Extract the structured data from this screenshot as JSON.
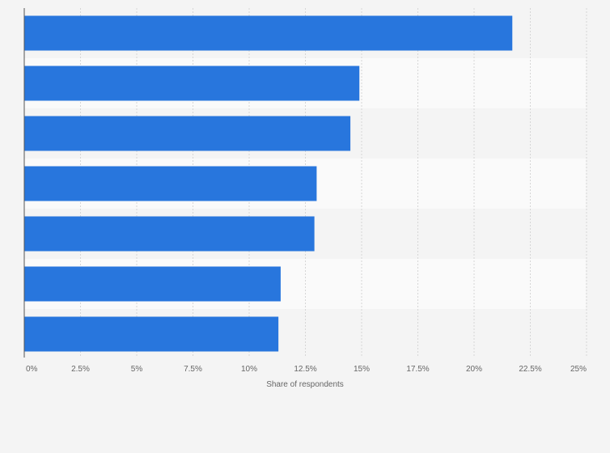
{
  "chart_data": {
    "type": "bar",
    "orientation": "horizontal",
    "categories": [
      "",
      "",
      "",
      "",
      "",
      "",
      ""
    ],
    "values": [
      21.7,
      14.9,
      14.5,
      13.0,
      12.9,
      11.4,
      11.3
    ],
    "xlabel": "Share of respondents",
    "ylabel": "",
    "xlim": [
      0,
      25
    ],
    "x_ticks": [
      0,
      2.5,
      5,
      7.5,
      10,
      12.5,
      15,
      17.5,
      20,
      22.5,
      25
    ],
    "x_tick_labels": [
      "0%",
      "2.5%",
      "5%",
      "7.5%",
      "10%",
      "12.5%",
      "15%",
      "17.5%",
      "20%",
      "22.5%",
      "25%"
    ],
    "grid": true,
    "legend": "none",
    "bar_color": "#2876dd",
    "band_colors": [
      "#f4f4f4",
      "#fafafa"
    ],
    "background": "#f4f4f4"
  }
}
